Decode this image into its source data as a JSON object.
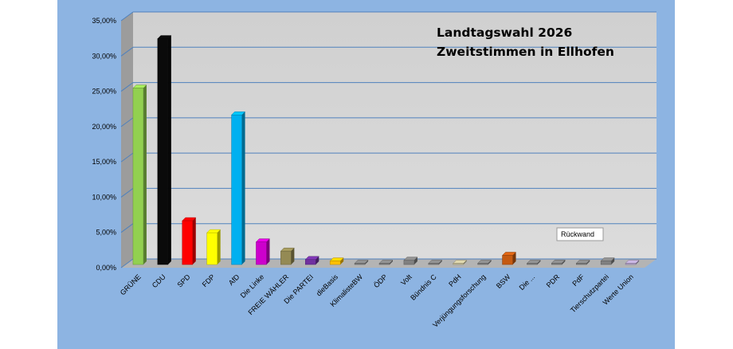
{
  "chart_data": {
    "type": "bar",
    "title_line1": "Landtagswahl 2026",
    "title_line2": "Zweitstimmen in Ellhofen",
    "tooltip": "Rückwand",
    "xlabel": "",
    "ylabel": "",
    "ylim": [
      0,
      35
    ],
    "y_ticks": [
      "0,00%",
      "5,00%",
      "10,00%",
      "15,00%",
      "20,00%",
      "25,00%",
      "30,00%",
      "35,00%"
    ],
    "grid": true,
    "categories": [
      "GRÜNE",
      "CDU",
      "SPD",
      "FDP",
      "AfD",
      "Die Linke",
      "FREIE WÄHLER",
      "Die PARTEI",
      "dieBasis",
      "KlimalisteBW",
      "ÖDP",
      "Volt",
      "Bündnis C",
      "PdH",
      "Verjüngungsforschung",
      "BSW",
      "Die ...",
      "PDR",
      "PdF",
      "Tierschutzpartei",
      "Werte Union"
    ],
    "values": [
      25.0,
      32.0,
      6.2,
      4.5,
      21.2,
      3.2,
      1.9,
      0.7,
      0.5,
      0.05,
      0.15,
      0.6,
      0.05,
      0.05,
      0.15,
      1.3,
      0.15,
      0.2,
      0.1,
      0.5,
      0.05
    ],
    "colors": [
      "#92d050",
      "#0a0a0a",
      "#ff0000",
      "#ffff00",
      "#00b0f0",
      "#cc00cc",
      "#948a54",
      "#7030a0",
      "#ffc000",
      "#808080",
      "#808080",
      "#808080",
      "#808080",
      "#c4bd97",
      "#808080",
      "#c55a11",
      "#808080",
      "#808080",
      "#808080",
      "#808080",
      "#b1a0c7"
    ]
  }
}
